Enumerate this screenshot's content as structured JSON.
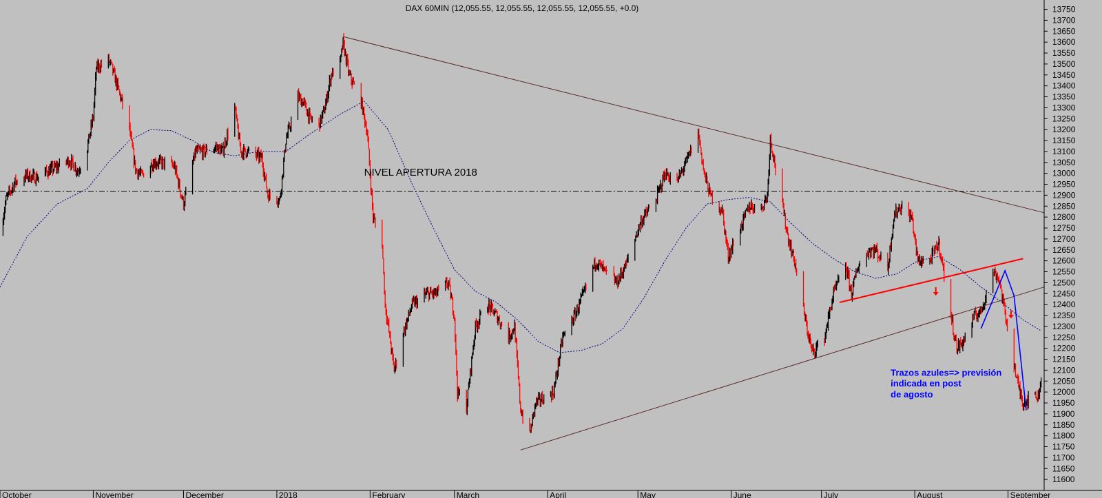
{
  "chart_data": {
    "type": "candlestick",
    "title": "DAX 60MIN (12,055.55, 12,055.55, 12,055.55, 12,055.55, +0.0)",
    "ylim": [
      11550,
      13780
    ],
    "y_ticks": [
      11600,
      11650,
      11700,
      11750,
      11800,
      11850,
      11900,
      11950,
      12000,
      12050,
      12100,
      12150,
      12200,
      12250,
      12300,
      12350,
      12400,
      12450,
      12500,
      12550,
      12600,
      12650,
      12700,
      12750,
      12800,
      12850,
      12900,
      12950,
      13000,
      13050,
      13100,
      13150,
      13200,
      13250,
      13300,
      13350,
      13400,
      13450,
      13500,
      13550,
      13600,
      13650,
      13700,
      13750
    ],
    "y_tick_labels": [
      "11600",
      "11650",
      "11700",
      "11750",
      "11800",
      "11850",
      "11900",
      "11950",
      "12000",
      "12050",
      "12100",
      "12150",
      "12200",
      "12250",
      "12300",
      "12350",
      "12400",
      "12450",
      "12500",
      "12550",
      "12600",
      "12650",
      "12700",
      "12750",
      "12800",
      "12850",
      "12900",
      "12950",
      "13000",
      "13050",
      "13100",
      "13150",
      "13200",
      "13250",
      "13300",
      "13350",
      "13400",
      "13450",
      "13500",
      "13550",
      "13600",
      "13650",
      "13700",
      "13750"
    ],
    "x_range": [
      "2017-10-01",
      "2018-09-13"
    ],
    "x_ticks": [
      {
        "label": "October",
        "date": "2017-10-01"
      },
      {
        "label": "November",
        "date": "2017-11-01"
      },
      {
        "label": "December",
        "date": "2017-12-01"
      },
      {
        "label": "2018",
        "date": "2018-01-01"
      },
      {
        "label": "February",
        "date": "2018-02-01"
      },
      {
        "label": "March",
        "date": "2018-03-01"
      },
      {
        "label": "April",
        "date": "2018-04-01"
      },
      {
        "label": "May",
        "date": "2018-05-01"
      },
      {
        "label": "June",
        "date": "2018-06-01"
      },
      {
        "label": "July",
        "date": "2018-07-01"
      },
      {
        "label": "August",
        "date": "2018-08-01"
      },
      {
        "label": "September",
        "date": "2018-09-01"
      }
    ],
    "price_path": [
      [
        "2017-10-01",
        12720
      ],
      [
        "2017-10-03",
        12880
      ],
      [
        "2017-10-06",
        12960
      ],
      [
        "2017-10-10",
        12990
      ],
      [
        "2017-10-13",
        12980
      ],
      [
        "2017-10-17",
        13010
      ],
      [
        "2017-10-20",
        13030
      ],
      [
        "2017-10-24",
        13060
      ],
      [
        "2017-10-27",
        13010
      ],
      [
        "2017-10-30",
        13120
      ],
      [
        "2017-11-01",
        13260
      ],
      [
        "2017-11-02",
        13480
      ],
      [
        "2017-11-06",
        13520
      ],
      [
        "2017-11-07",
        13490
      ],
      [
        "2017-11-09",
        13400
      ],
      [
        "2017-11-13",
        13200
      ],
      [
        "2017-11-15",
        13020
      ],
      [
        "2017-11-17",
        12990
      ],
      [
        "2017-11-21",
        13050
      ],
      [
        "2017-11-24",
        13050
      ],
      [
        "2017-11-28",
        13030
      ],
      [
        "2017-12-01",
        12860
      ],
      [
        "2017-12-05",
        13100
      ],
      [
        "2017-12-08",
        13100
      ],
      [
        "2017-12-12",
        13120
      ],
      [
        "2017-12-14",
        13100
      ],
      [
        "2017-12-18",
        13300
      ],
      [
        "2017-12-20",
        13100
      ],
      [
        "2017-12-22",
        13100
      ],
      [
        "2017-12-27",
        13070
      ],
      [
        "2017-12-29",
        12900
      ],
      [
        "2018-01-02",
        12880
      ],
      [
        "2018-01-04",
        13150
      ],
      [
        "2018-01-08",
        13350
      ],
      [
        "2018-01-10",
        13320
      ],
      [
        "2018-01-12",
        13250
      ],
      [
        "2018-01-15",
        13220
      ],
      [
        "2018-01-17",
        13300
      ],
      [
        "2018-01-19",
        13450
      ],
      [
        "2018-01-22",
        13500
      ],
      [
        "2018-01-23",
        13600
      ],
      [
        "2018-01-25",
        13450
      ],
      [
        "2018-01-29",
        13330
      ],
      [
        "2018-01-31",
        13190
      ],
      [
        "2018-02-02",
        12800
      ],
      [
        "2018-02-05",
        12680
      ],
      [
        "2018-02-06",
        12400
      ],
      [
        "2018-02-08",
        12200
      ],
      [
        "2018-02-09",
        12100
      ],
      [
        "2018-02-12",
        12270
      ],
      [
        "2018-02-15",
        12400
      ],
      [
        "2018-02-20",
        12450
      ],
      [
        "2018-02-23",
        12450
      ],
      [
        "2018-02-27",
        12500
      ],
      [
        "2018-03-01",
        12350
      ],
      [
        "2018-03-02",
        12000
      ],
      [
        "2018-03-05",
        11930
      ],
      [
        "2018-03-08",
        12300
      ],
      [
        "2018-03-12",
        12400
      ],
      [
        "2018-03-15",
        12350
      ],
      [
        "2018-03-19",
        12250
      ],
      [
        "2018-03-21",
        12300
      ],
      [
        "2018-03-23",
        11920
      ],
      [
        "2018-03-26",
        11800
      ],
      [
        "2018-03-28",
        11950
      ],
      [
        "2018-04-03",
        12000
      ],
      [
        "2018-04-06",
        12250
      ],
      [
        "2018-04-10",
        12350
      ],
      [
        "2018-04-13",
        12450
      ],
      [
        "2018-04-17",
        12600
      ],
      [
        "2018-04-20",
        12550
      ],
      [
        "2018-04-24",
        12500
      ],
      [
        "2018-04-27",
        12580
      ],
      [
        "2018-05-02",
        12780
      ],
      [
        "2018-05-07",
        12880
      ],
      [
        "2018-05-10",
        13000
      ],
      [
        "2018-05-14",
        12960
      ],
      [
        "2018-05-17",
        13050
      ],
      [
        "2018-05-21",
        13190
      ],
      [
        "2018-05-23",
        13000
      ],
      [
        "2018-05-25",
        12900
      ],
      [
        "2018-05-29",
        12830
      ],
      [
        "2018-05-31",
        12620
      ],
      [
        "2018-06-04",
        12750
      ],
      [
        "2018-06-07",
        12850
      ],
      [
        "2018-06-11",
        12840
      ],
      [
        "2018-06-13",
        12900
      ],
      [
        "2018-06-14",
        13160
      ],
      [
        "2018-06-18",
        12850
      ],
      [
        "2018-06-20",
        12700
      ],
      [
        "2018-06-22",
        12600
      ],
      [
        "2018-06-26",
        12300
      ],
      [
        "2018-06-28",
        12180
      ],
      [
        "2018-07-02",
        12250
      ],
      [
        "2018-07-05",
        12450
      ],
      [
        "2018-07-09",
        12580
      ],
      [
        "2018-07-11",
        12450
      ],
      [
        "2018-07-13",
        12570
      ],
      [
        "2018-07-17",
        12650
      ],
      [
        "2018-07-19",
        12650
      ],
      [
        "2018-07-23",
        12560
      ],
      [
        "2018-07-25",
        12800
      ],
      [
        "2018-07-27",
        12850
      ],
      [
        "2018-07-31",
        12800
      ],
      [
        "2018-08-02",
        12600
      ],
      [
        "2018-08-06",
        12600
      ],
      [
        "2018-08-09",
        12680
      ],
      [
        "2018-08-13",
        12350
      ],
      [
        "2018-08-15",
        12200
      ],
      [
        "2018-08-17",
        12230
      ],
      [
        "2018-08-21",
        12350
      ],
      [
        "2018-08-23",
        12370
      ],
      [
        "2018-08-27",
        12550
      ],
      [
        "2018-08-29",
        12520
      ],
      [
        "2018-08-31",
        12360
      ],
      [
        "2018-09-04",
        12050
      ],
      [
        "2018-09-06",
        11950
      ],
      [
        "2018-09-07",
        11960
      ],
      [
        "2018-09-10",
        11980
      ],
      [
        "2018-09-11",
        11980
      ],
      [
        "2018-09-12",
        12055
      ]
    ],
    "moving_average": [
      [
        "2017-10-01",
        12480
      ],
      [
        "2017-10-10",
        12710
      ],
      [
        "2017-10-20",
        12860
      ],
      [
        "2017-10-30",
        12930
      ],
      [
        "2017-11-06",
        13050
      ],
      [
        "2017-11-13",
        13150
      ],
      [
        "2017-11-20",
        13200
      ],
      [
        "2017-11-27",
        13195
      ],
      [
        "2017-12-04",
        13150
      ],
      [
        "2017-12-11",
        13095
      ],
      [
        "2017-12-18",
        13080
      ],
      [
        "2017-12-26",
        13100
      ],
      [
        "2018-01-04",
        13100
      ],
      [
        "2018-01-12",
        13180
      ],
      [
        "2018-01-22",
        13270
      ],
      [
        "2018-01-30",
        13330
      ],
      [
        "2018-02-07",
        13200
      ],
      [
        "2018-02-15",
        12950
      ],
      [
        "2018-02-22",
        12750
      ],
      [
        "2018-03-01",
        12560
      ],
      [
        "2018-03-08",
        12460
      ],
      [
        "2018-03-15",
        12410
      ],
      [
        "2018-03-22",
        12330
      ],
      [
        "2018-03-29",
        12230
      ],
      [
        "2018-04-05",
        12180
      ],
      [
        "2018-04-12",
        12190
      ],
      [
        "2018-04-19",
        12220
      ],
      [
        "2018-04-26",
        12290
      ],
      [
        "2018-05-03",
        12430
      ],
      [
        "2018-05-10",
        12600
      ],
      [
        "2018-05-17",
        12750
      ],
      [
        "2018-05-24",
        12860
      ],
      [
        "2018-05-31",
        12880
      ],
      [
        "2018-06-07",
        12890
      ],
      [
        "2018-06-14",
        12870
      ],
      [
        "2018-06-21",
        12770
      ],
      [
        "2018-06-28",
        12680
      ],
      [
        "2018-07-05",
        12610
      ],
      [
        "2018-07-12",
        12550
      ],
      [
        "2018-07-19",
        12520
      ],
      [
        "2018-07-26",
        12540
      ],
      [
        "2018-08-02",
        12600
      ],
      [
        "2018-08-09",
        12620
      ],
      [
        "2018-08-16",
        12560
      ],
      [
        "2018-08-23",
        12480
      ],
      [
        "2018-08-30",
        12410
      ],
      [
        "2018-09-06",
        12330
      ],
      [
        "2018-09-12",
        12280
      ]
    ],
    "trendlines": [
      {
        "name": "downtrend-resistance",
        "color": "#5a2a2a",
        "points": [
          [
            "2018-01-23",
            13625
          ],
          [
            "2018-09-13",
            12820
          ]
        ]
      },
      {
        "name": "uptrend-support",
        "color": "#5a2a2a",
        "points": [
          [
            "2018-03-23",
            11735
          ],
          [
            "2018-09-13",
            12480
          ]
        ]
      },
      {
        "name": "red-support",
        "color": "#ff0000",
        "points": [
          [
            "2018-07-07",
            12410
          ],
          [
            "2018-09-06",
            12610
          ]
        ]
      },
      {
        "name": "blue-forecast",
        "color": "#0000ff",
        "points": [
          [
            "2018-08-23",
            12290
          ],
          [
            "2018-08-31",
            12555
          ],
          [
            "2018-09-03",
            12440
          ],
          [
            "2018-09-07",
            11920
          ]
        ]
      }
    ],
    "horizontal_lines": [
      {
        "name": "opening-level-2018",
        "value": 12918,
        "color": "#000000"
      }
    ],
    "annotations": [
      {
        "text": "NIVEL APERTURA 2018",
        "date": "2018-01-30",
        "value": 12990,
        "color": "#000000"
      },
      {
        "text": "Trazos azules=> previsión",
        "date": "2018-07-24",
        "value": 12075,
        "color": "#0000ff"
      },
      {
        "text": "indicada en post",
        "date": "2018-07-24",
        "value": 12025,
        "color": "#0000ff"
      },
      {
        "text": "de agosto",
        "date": "2018-07-24",
        "value": 11975,
        "color": "#0000ff"
      }
    ],
    "markers": [
      {
        "name": "down-arrow",
        "date": "2018-08-08",
        "value": 12460,
        "color": "#ff0000"
      },
      {
        "name": "down-arrow",
        "date": "2018-09-02",
        "value": 12355,
        "color": "#ff0000"
      }
    ],
    "colors": {
      "background": "#c0c0c0",
      "up": "#000000",
      "down": "#ff0000",
      "ma": "#000080",
      "axis": "#000000"
    },
    "grid": false,
    "legend": "none"
  }
}
